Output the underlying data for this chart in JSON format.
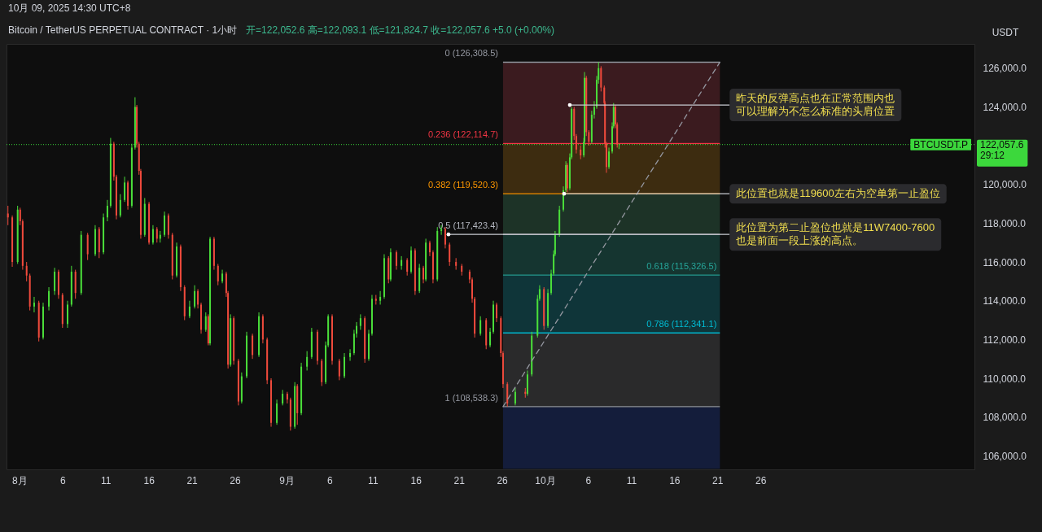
{
  "chart_data": {
    "type": "candlestick",
    "title": "Bitcoin / TetherUS PERPETUAL CONTRACT · 1小时",
    "subtitle": "开=122,052.6 高=122,093.1 低=121,824.7 收=122,057.6 +5.0 (+0.00%)",
    "ylabel": "USDT",
    "x": [
      "2025-07-30T16:00",
      "2025-07-31T04:00",
      "2025-07-31T19:00",
      "2025-08-01T02:00",
      "2025-08-01T09:00",
      "2025-08-01T20:00",
      "2025-08-02T05:00",
      "2025-08-02T17:00",
      "2025-08-03T06:00",
      "2025-08-03T18:00",
      "2025-08-04T10:00",
      "2025-08-05T02:00",
      "2025-08-05T13:00",
      "2025-08-06T00:00",
      "2025-08-06T14:00",
      "2025-08-07T01:00",
      "2025-08-07T12:00",
      "2025-08-08T04:00",
      "2025-08-08T22:00",
      "2025-08-09T19:00",
      "2025-08-10T06:00",
      "2025-08-10T18:00",
      "2025-08-11T05:00",
      "2025-08-11T14:00",
      "2025-08-11T23:00",
      "2025-08-12T06:00",
      "2025-08-12T17:00",
      "2025-08-13T05:00",
      "2025-08-13T14:00",
      "2025-08-14T01:00",
      "2025-08-14T10:00",
      "2025-08-14T15:00",
      "2025-08-14T21:00",
      "2025-08-15T02:00",
      "2025-08-15T13:00",
      "2025-08-16T01:00",
      "2025-08-16T12:00",
      "2025-08-16T23:00",
      "2025-08-17T08:00",
      "2025-08-17T20:00",
      "2025-08-18T07:00",
      "2025-08-18T18:00",
      "2025-08-19T06:00",
      "2025-08-19T17:00",
      "2025-08-20T04:00",
      "2025-08-20T18:00",
      "2025-08-21T08:00",
      "2025-08-21T17:00",
      "2025-08-22T02:00",
      "2025-08-22T15:00",
      "2025-08-22T22:00",
      "2025-08-23T03:00",
      "2025-08-23T14:00",
      "2025-08-24T01:00",
      "2025-08-24T13:00",
      "2025-08-25T00:00",
      "2025-08-25T05:00",
      "2025-08-25T12:00",
      "2025-08-25T21:00",
      "2025-08-26T10:00",
      "2025-08-26T19:00",
      "2025-08-27T09:00",
      "2025-08-28T01:00",
      "2025-08-28T19:00",
      "2025-08-29T06:00",
      "2025-08-29T18:00",
      "2025-08-30T05:00",
      "2025-08-30T21:00",
      "2025-08-31T13:00",
      "2025-09-01T02:00",
      "2025-09-01T11:00",
      "2025-09-01T23:00",
      "2025-09-02T06:00",
      "2025-09-02T17:00",
      "2025-09-03T09:00",
      "2025-09-03T22:00",
      "2025-09-04T14:00",
      "2025-09-05T02:00",
      "2025-09-05T13:00",
      "2025-09-05T20:00",
      "2025-09-06T07:00",
      "2025-09-07T03:00",
      "2025-09-07T17:00",
      "2025-09-08T09:00",
      "2025-09-08T20:00",
      "2025-09-09T03:00",
      "2025-09-09T14:00",
      "2025-09-10T02:00",
      "2025-09-10T13:00",
      "2025-09-10T22:00",
      "2025-09-11T09:00",
      "2025-09-11T21:00",
      "2025-09-12T08:00",
      "2025-09-12T20:00",
      "2025-09-13T02:00",
      "2025-09-13T18:00",
      "2025-09-14T08:00",
      "2025-09-15T00:00",
      "2025-09-15T11:00",
      "2025-09-15T22:00",
      "2025-09-16T10:00",
      "2025-09-16T21:00",
      "2025-09-17T04:00",
      "2025-09-17T15:00",
      "2025-09-18T00:00",
      "2025-09-18T12:00",
      "2025-09-18T23:00",
      "2025-09-19T10:00",
      "2025-09-19T22:00",
      "2025-09-20T16:00",
      "2025-09-21T08:00",
      "2025-09-22T06:00",
      "2025-09-22T13:00",
      "2025-09-22T20:00",
      "2025-09-23T12:00",
      "2025-09-24T04:00",
      "2025-09-24T15:00",
      "2025-09-25T00:00",
      "2025-09-25T09:00",
      "2025-09-25T21:00",
      "2025-09-26T03:00",
      "2025-09-26T15:00",
      "2025-09-27T13:00",
      "2025-09-28T17:00",
      "2025-09-28T23:00",
      "2025-09-29T11:00",
      "2025-09-30T03:00",
      "2025-09-30T09:00",
      "2025-09-30T21:00",
      "2025-10-01T08:00",
      "2025-10-01T17:00",
      "2025-10-02T00:00",
      "2025-10-02T04:00",
      "2025-10-02T16:00",
      "2025-10-03T03:00",
      "2025-10-03T10:00",
      "2025-10-03T14:00",
      "2025-10-03T21:00",
      "2025-10-04T02:00",
      "2025-10-04T09:00",
      "2025-10-04T15:00",
      "2025-10-05T03:00",
      "2025-10-05T12:00",
      "2025-10-05T14:00",
      "2025-10-05T19:00",
      "2025-10-06T02:00",
      "2025-10-06T10:00",
      "2025-10-06T17:00",
      "2025-10-07T00:00",
      "2025-10-07T05:00",
      "2025-10-07T12:00",
      "2025-10-07T21:00",
      "2025-10-07T23:00",
      "2025-10-08T03:00",
      "2025-10-08T10:00",
      "2025-10-08T19:00",
      "2025-10-08T23:00",
      "2025-10-09T04:00",
      "2025-10-09T09:00",
      "2025-10-09T14:00"
    ],
    "ohlc": [
      [
        118500,
        118900,
        117900,
        118300
      ],
      [
        118300,
        118400,
        115750,
        116000
      ],
      [
        116000,
        118900,
        115900,
        118700
      ],
      [
        118700,
        118800,
        117900,
        118100
      ],
      [
        118100,
        118200,
        115600,
        115800
      ],
      [
        115800,
        116000,
        115000,
        115300
      ],
      [
        115300,
        115400,
        113500,
        113700
      ],
      [
        113700,
        114200,
        113400,
        113900
      ],
      [
        113900,
        114000,
        111900,
        112100
      ],
      [
        112100,
        113900,
        112000,
        113700
      ],
      [
        113700,
        114700,
        113500,
        114500
      ],
      [
        114500,
        115700,
        114300,
        115500
      ],
      [
        115500,
        115600,
        114100,
        114300
      ],
      [
        114300,
        114400,
        112600,
        112800
      ],
      [
        112800,
        114000,
        112600,
        113800
      ],
      [
        113800,
        115800,
        113700,
        115500
      ],
      [
        115500,
        115600,
        114100,
        114400
      ],
      [
        114400,
        117600,
        114300,
        117400
      ],
      [
        117400,
        117500,
        116100,
        116400
      ],
      [
        116400,
        117900,
        116300,
        117700
      ],
      [
        117700,
        117800,
        116200,
        116500
      ],
      [
        116500,
        118500,
        116400,
        118300
      ],
      [
        118300,
        119200,
        118100,
        118900
      ],
      [
        118900,
        122400,
        118800,
        122100
      ],
      [
        122100,
        122200,
        120200,
        120400
      ],
      [
        120400,
        120500,
        118200,
        118400
      ],
      [
        118400,
        119500,
        118300,
        119200
      ],
      [
        119200,
        120400,
        119100,
        120100
      ],
      [
        120100,
        120200,
        118700,
        118900
      ],
      [
        118900,
        122100,
        118800,
        121900
      ],
      [
        121900,
        124500,
        121800,
        124000
      ],
      [
        124000,
        124100,
        121900,
        122100
      ],
      [
        122100,
        122200,
        120500,
        120700
      ],
      [
        120700,
        120800,
        117200,
        117400
      ],
      [
        117400,
        119300,
        117300,
        119000
      ],
      [
        119000,
        119100,
        116900,
        117000
      ],
      [
        117000,
        117900,
        116900,
        117700
      ],
      [
        117700,
        117800,
        117000,
        117200
      ],
      [
        117200,
        117600,
        117000,
        117400
      ],
      [
        117400,
        118600,
        117300,
        118400
      ],
      [
        118400,
        118500,
        117200,
        117400
      ],
      [
        117400,
        117500,
        115100,
        115300
      ],
      [
        115300,
        117000,
        115200,
        116800
      ],
      [
        116800,
        116900,
        114500,
        114700
      ],
      [
        114700,
        114800,
        113000,
        113200
      ],
      [
        113200,
        114000,
        113100,
        113700
      ],
      [
        113700,
        114800,
        113600,
        114500
      ],
      [
        114500,
        114600,
        113600,
        113800
      ],
      [
        113800,
        113900,
        112300,
        112500
      ],
      [
        112500,
        113400,
        112400,
        113200
      ],
      [
        113200,
        113300,
        111700,
        111800
      ],
      [
        111800,
        117300,
        111700,
        117200
      ],
      [
        117200,
        117300,
        115600,
        115800
      ],
      [
        115800,
        115900,
        114800,
        115000
      ],
      [
        115000,
        115600,
        114900,
        115400
      ],
      [
        115400,
        115500,
        114200,
        114400
      ],
      [
        114400,
        114500,
        110500,
        110700
      ],
      [
        110700,
        113300,
        110600,
        113100
      ],
      [
        113100,
        113200,
        110700,
        110900
      ],
      [
        110900,
        111000,
        108600,
        108800
      ],
      [
        108800,
        110300,
        108700,
        110100
      ],
      [
        110100,
        112400,
        110000,
        112200
      ],
      [
        112200,
        112300,
        111000,
        111200
      ],
      [
        111200,
        113400,
        111100,
        113200
      ],
      [
        113200,
        113300,
        111800,
        112000
      ],
      [
        112000,
        112100,
        109700,
        109900
      ],
      [
        109900,
        110000,
        107500,
        107700
      ],
      [
        107700,
        108900,
        107600,
        108700
      ],
      [
        108700,
        109400,
        108600,
        109200
      ],
      [
        109200,
        109300,
        108700,
        108900
      ],
      [
        108900,
        109000,
        107300,
        107500
      ],
      [
        107500,
        109800,
        107400,
        109600
      ],
      [
        109600,
        109700,
        107600,
        108200
      ],
      [
        108200,
        110800,
        108100,
        110600
      ],
      [
        110600,
        111400,
        110400,
        111100
      ],
      [
        111100,
        112600,
        111000,
        112400
      ],
      [
        112400,
        112500,
        110700,
        110900
      ],
      [
        110900,
        111000,
        109600,
        109800
      ],
      [
        109800,
        111900,
        109700,
        111700
      ],
      [
        111700,
        113300,
        111600,
        113200
      ],
      [
        113200,
        113300,
        110700,
        110900
      ],
      [
        110900,
        111000,
        109900,
        110100
      ],
      [
        110100,
        111300,
        110000,
        111100
      ],
      [
        111100,
        111500,
        110900,
        111300
      ],
      [
        111300,
        112500,
        111200,
        112300
      ],
      [
        112300,
        112900,
        112100,
        112700
      ],
      [
        112700,
        113300,
        112500,
        113100
      ],
      [
        113100,
        113200,
        110800,
        111000
      ],
      [
        111000,
        112500,
        110900,
        112300
      ],
      [
        112300,
        114300,
        112200,
        114100
      ],
      [
        114100,
        114300,
        113800,
        114000
      ],
      [
        114000,
        114500,
        113800,
        114200
      ],
      [
        114200,
        116400,
        114100,
        116200
      ],
      [
        116200,
        116300,
        114900,
        115100
      ],
      [
        115100,
        116700,
        115000,
        116500
      ],
      [
        116500,
        116600,
        115600,
        115800
      ],
      [
        115800,
        116300,
        115600,
        116100
      ],
      [
        116100,
        116200,
        115300,
        115500
      ],
      [
        115500,
        116800,
        115400,
        116600
      ],
      [
        116600,
        116700,
        114300,
        114500
      ],
      [
        114500,
        115900,
        114400,
        115700
      ],
      [
        115700,
        115800,
        114900,
        115100
      ],
      [
        115100,
        117200,
        115000,
        117000
      ],
      [
        117000,
        117100,
        116300,
        116500
      ],
      [
        116500,
        116600,
        114900,
        115100
      ],
      [
        115100,
        117800,
        115000,
        117600
      ],
      [
        117600,
        117900,
        117400,
        117700
      ],
      [
        117700,
        117800,
        116700,
        116900
      ],
      [
        116900,
        117000,
        115800,
        116000
      ],
      [
        116000,
        116200,
        115600,
        115800
      ],
      [
        115800,
        115900,
        115300,
        115500
      ],
      [
        115500,
        115600,
        114900,
        115100
      ],
      [
        115100,
        115200,
        113900,
        114100
      ],
      [
        114100,
        114200,
        112100,
        112300
      ],
      [
        112300,
        113200,
        112200,
        113000
      ],
      [
        113000,
        113100,
        111500,
        111700
      ],
      [
        111700,
        112600,
        111600,
        112400
      ],
      [
        112400,
        114000,
        112300,
        113800
      ],
      [
        113800,
        113900,
        112900,
        113100
      ],
      [
        113100,
        113200,
        111100,
        111300
      ],
      [
        111300,
        111400,
        109500,
        109700
      ],
      [
        109700,
        109800,
        108538.3,
        108700
      ],
      [
        108700,
        109500,
        108600,
        109300
      ],
      [
        109300,
        109500,
        109000,
        109200
      ],
      [
        109200,
        110400,
        109100,
        110200
      ],
      [
        110200,
        112400,
        110100,
        112200
      ],
      [
        112200,
        114300,
        112100,
        114100
      ],
      [
        114100,
        114800,
        114000,
        114600
      ],
      [
        114600,
        114700,
        112500,
        112700
      ],
      [
        112700,
        114600,
        112600,
        114400
      ],
      [
        114400,
        115600,
        114300,
        115400
      ],
      [
        115400,
        116600,
        115300,
        116400
      ],
      [
        116400,
        117600,
        116300,
        117400
      ],
      [
        117400,
        118900,
        117300,
        118700
      ],
      [
        118700,
        119900,
        118600,
        119700
      ],
      [
        119700,
        121200,
        119600,
        121000
      ],
      [
        121000,
        121100,
        119600,
        119800
      ],
      [
        119800,
        121600,
        119700,
        121400
      ],
      [
        121400,
        124000,
        121300,
        123900
      ],
      [
        123900,
        124000,
        122300,
        122500
      ],
      [
        122500,
        122600,
        121600,
        121800
      ],
      [
        121800,
        122000,
        121300,
        121500
      ],
      [
        121500,
        122400,
        121400,
        122200
      ],
      [
        122200,
        125800,
        122100,
        125500
      ],
      [
        125500,
        125600,
        122500,
        122700
      ],
      [
        122700,
        122800,
        122000,
        122200
      ],
      [
        122200,
        123800,
        122100,
        123600
      ],
      [
        123600,
        124300,
        123400,
        124000
      ],
      [
        124000,
        125600,
        123900,
        125400
      ],
      [
        125400,
        126308.5,
        125200,
        126000
      ],
      [
        126000,
        126100,
        124800,
        125000
      ],
      [
        125000,
        125100,
        124000,
        124200
      ],
      [
        124200,
        124300,
        121900,
        122100
      ],
      [
        122100,
        122200,
        120600,
        120900
      ],
      [
        120900,
        121900,
        120800,
        121700
      ],
      [
        121700,
        123200,
        121600,
        123000
      ],
      [
        123000,
        124200,
        122900,
        124000
      ],
      [
        124000,
        124100,
        122900,
        123100
      ],
      [
        123100,
        123200,
        121900,
        122052.6
      ],
      [
        122052.6,
        122093.1,
        121824.7,
        122057.6
      ]
    ],
    "colors": [
      "#ef4a3c",
      "#ef4a3c",
      "#4ade3a",
      "#ef4a3c",
      "#ef4a3c",
      "#ef4a3c",
      "#ef4a3c",
      "#4ade3a",
      "#ef4a3c",
      "#4ade3a",
      "#4ade3a",
      "#4ade3a",
      "#ef4a3c",
      "#ef4a3c",
      "#4ade3a",
      "#4ade3a",
      "#ef4a3c",
      "#4ade3a",
      "#ef4a3c",
      "#4ade3a",
      "#ef4a3c",
      "#4ade3a",
      "#4ade3a",
      "#4ade3a",
      "#ef4a3c",
      "#ef4a3c",
      "#4ade3a",
      "#4ade3a",
      "#ef4a3c",
      "#4ade3a",
      "#4ade3a",
      "#ef4a3c",
      "#ef4a3c",
      "#ef4a3c",
      "#4ade3a",
      "#ef4a3c",
      "#4ade3a",
      "#ef4a3c",
      "#4ade3a",
      "#4ade3a",
      "#ef4a3c",
      "#ef4a3c",
      "#4ade3a",
      "#ef4a3c",
      "#ef4a3c",
      "#4ade3a",
      "#4ade3a",
      "#ef4a3c",
      "#ef4a3c",
      "#4ade3a",
      "#ef4a3c",
      "#4ade3a",
      "#ef4a3c",
      "#ef4a3c",
      "#4ade3a",
      "#ef4a3c",
      "#ef4a3c",
      "#4ade3a",
      "#ef4a3c",
      "#ef4a3c",
      "#4ade3a",
      "#4ade3a",
      "#ef4a3c",
      "#4ade3a",
      "#ef4a3c",
      "#ef4a3c",
      "#ef4a3c",
      "#4ade3a",
      "#4ade3a",
      "#ef4a3c",
      "#ef4a3c",
      "#4ade3a",
      "#ef4a3c",
      "#4ade3a",
      "#4ade3a",
      "#4ade3a",
      "#ef4a3c",
      "#ef4a3c",
      "#4ade3a",
      "#4ade3a",
      "#ef4a3c",
      "#ef4a3c",
      "#4ade3a",
      "#4ade3a",
      "#4ade3a",
      "#4ade3a",
      "#4ade3a",
      "#ef4a3c",
      "#4ade3a",
      "#4ade3a",
      "#ef4a3c",
      "#4ade3a",
      "#4ade3a",
      "#ef4a3c",
      "#4ade3a",
      "#ef4a3c",
      "#4ade3a",
      "#ef4a3c",
      "#4ade3a",
      "#ef4a3c",
      "#4ade3a",
      "#ef4a3c",
      "#4ade3a",
      "#ef4a3c",
      "#ef4a3c",
      "#4ade3a",
      "#4ade3a",
      "#ef4a3c",
      "#ef4a3c",
      "#ef4a3c",
      "#ef4a3c",
      "#ef4a3c",
      "#ef4a3c",
      "#ef4a3c",
      "#4ade3a",
      "#ef4a3c",
      "#4ade3a",
      "#4ade3a",
      "#ef4a3c",
      "#ef4a3c",
      "#ef4a3c",
      "#ef4a3c",
      "#4ade3a",
      "#ef4a3c",
      "#4ade3a",
      "#4ade3a",
      "#4ade3a",
      "#4ade3a",
      "#ef4a3c",
      "#4ade3a",
      "#4ade3a",
      "#4ade3a",
      "#4ade3a",
      "#4ade3a",
      "#4ade3a",
      "#4ade3a",
      "#ef4a3c",
      "#4ade3a",
      "#4ade3a",
      "#ef4a3c",
      "#ef4a3c",
      "#ef4a3c",
      "#4ade3a",
      "#4ade3a",
      "#ef4a3c",
      "#ef4a3c",
      "#4ade3a",
      "#4ade3a",
      "#4ade3a",
      "#4ade3a",
      "#ef4a3c",
      "#ef4a3c",
      "#ef4a3c",
      "#ef4a3c",
      "#4ade3a",
      "#4ade3a",
      "#4ade3a",
      "#ef4a3c",
      "#ef4a3c",
      "#4ade3a"
    ],
    "series": [
      {
        "type": "line",
        "x": [
          "2025-09-26T03:00",
          "2025-10-21T07:00"
        ],
        "values": [
          108538.3,
          126308.5
        ],
        "color": "#9598a1"
      }
    ],
    "line_style": "dashed",
    "xlim": [
      "2025-07-30T12:00",
      "2025-11-19T20:00"
    ],
    "xticks": [
      {
        "value": "2025-08-01",
        "label": "8月"
      },
      {
        "value": "2025-08-06",
        "label": "6"
      },
      {
        "value": "2025-08-11",
        "label": "11"
      },
      {
        "value": "2025-08-16",
        "label": "16"
      },
      {
        "value": "2025-08-21",
        "label": "21"
      },
      {
        "value": "2025-08-26",
        "label": "26"
      },
      {
        "value": "2025-09-01",
        "label": "9月"
      },
      {
        "value": "2025-09-06",
        "label": "6"
      },
      {
        "value": "2025-09-11",
        "label": "11"
      },
      {
        "value": "2025-09-16",
        "label": "16"
      },
      {
        "value": "2025-09-21",
        "label": "21"
      },
      {
        "value": "2025-09-26",
        "label": "26"
      },
      {
        "value": "2025-10-01",
        "label": "10月"
      },
      {
        "value": "2025-10-06",
        "label": "6"
      },
      {
        "value": "2025-10-11",
        "label": "11"
      },
      {
        "value": "2025-10-16",
        "label": "16"
      },
      {
        "value": "2025-10-21",
        "label": "21"
      },
      {
        "value": "2025-10-26",
        "label": "26"
      }
    ],
    "ylim": [
      105300,
      127250
    ],
    "yticks": [
      {
        "value": 106000,
        "label": "106,000.0"
      },
      {
        "value": 108000,
        "label": "108,000.0"
      },
      {
        "value": 110000,
        "label": "110,000.0"
      },
      {
        "value": 112000,
        "label": "112,000.0"
      },
      {
        "value": 114000,
        "label": "114,000.0"
      },
      {
        "value": 116000,
        "label": "116,000.0"
      },
      {
        "value": 118000,
        "label": "118,000.0"
      },
      {
        "value": 120000,
        "label": "120,000.0"
      },
      {
        "value": 124000,
        "label": "124,000.0"
      },
      {
        "value": 126000,
        "label": "126,000.0"
      }
    ],
    "bands": [
      {
        "axis": "y",
        "from": 122114.7,
        "to": 126308.5,
        "color": "#3b1b1f"
      },
      {
        "axis": "y",
        "from": 119520.3,
        "to": 122114.7,
        "color": "#3d2c10"
      },
      {
        "axis": "y",
        "from": 117423.4,
        "to": 119520.3,
        "color": "#1d3327"
      },
      {
        "axis": "y",
        "from": 115326.5,
        "to": 117423.4,
        "color": "#153530"
      },
      {
        "axis": "y",
        "from": 112341.1,
        "to": 115326.5,
        "color": "#0f3539"
      },
      {
        "axis": "y",
        "from": 108538.3,
        "to": 112341.1,
        "color": "#2a2a2b"
      },
      {
        "axis": "y",
        "from": 105300,
        "to": 108538.3,
        "color": "#141d3b"
      }
    ],
    "ref_lines": [
      {
        "axis": "y",
        "value": 126308.5,
        "label": "0 (126,308.5)",
        "color": "#9598a1"
      },
      {
        "axis": "y",
        "value": 122114.7,
        "label": "0.236 (122,114.7)",
        "color": "#f23645"
      },
      {
        "axis": "y",
        "value": 119520.3,
        "label": "0.382 (119,520.3)",
        "color": "#ff9800"
      },
      {
        "axis": "y",
        "value": 117423.4,
        "label": "0.5 (117,423.4)",
        "color": "#b2b5be"
      },
      {
        "axis": "y",
        "value": 115326.5,
        "label": "0.618 (115,326.5)",
        "color": "#26a69a"
      },
      {
        "axis": "y",
        "value": 112341.1,
        "label": "0.786 (112,341.1)",
        "color": "#00bcd4"
      },
      {
        "axis": "y",
        "value": 108538.3,
        "label": "1 (108,538.3)",
        "color": "#9598a1"
      },
      {
        "axis": "y",
        "value": 122057.6,
        "label": "122,057.6\n29:12",
        "color": "#3cd83c",
        "line_style": "dotted"
      }
    ],
    "annotations": [
      "10月 09, 2025 14:30 UTC+8",
      {
        "text": "昨天的反弹高点也在正常范围内也可以理解为不怎么标准的头肩位置",
        "x": "2025-10-03T21:00",
        "y": 124100
      },
      {
        "text": "此位置也就是119600左右为空单第一止盈位",
        "x": "2025-10-03T05:00",
        "y": 119520.3
      },
      {
        "text": "此位置为第二止盈位也就是11W7400-7600也是前面一段上涨的高点。",
        "x": "2025-09-19T19:00",
        "y": 117423.4
      },
      {
        "text": "BTCUSDT.P",
        "y": 122057.6
      }
    ]
  }
}
